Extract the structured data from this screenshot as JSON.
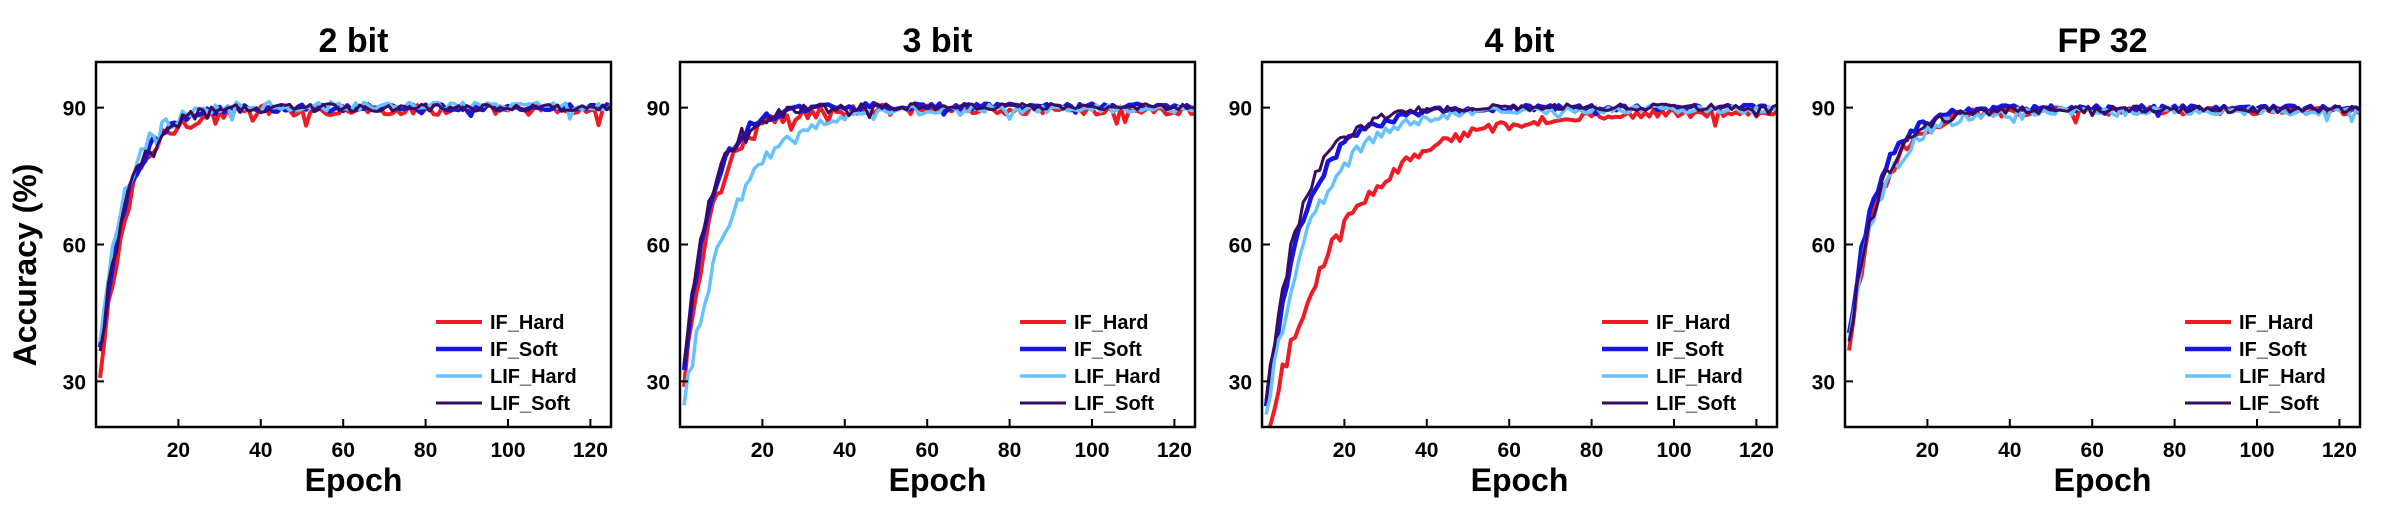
{
  "figure": {
    "ylabel_shared": "Accuracy (%)"
  },
  "colors": {
    "IF_Hard": "#ee1c25",
    "IF_Soft": "#1515e0",
    "LIF_Hard": "#66c2ff",
    "LIF_Soft": "#3b0b5e"
  },
  "chart_data": [
    {
      "type": "line",
      "title": "2 bit",
      "xlabel": "Epoch",
      "ylabel": "Accuracy (%)",
      "xlim": [
        0,
        125
      ],
      "ylim": [
        20,
        100
      ],
      "xticks": [
        20,
        40,
        60,
        80,
        100,
        120
      ],
      "yticks": [
        30,
        60,
        90
      ],
      "legend": "bottom-right",
      "series": [
        {
          "name": "IF_Hard",
          "shape": {
            "start": 30,
            "final": 89.5,
            "k": 0.15,
            "noise": 1.1
          }
        },
        {
          "name": "IF_Soft",
          "shape": {
            "start": 37,
            "final": 90.0,
            "k": 0.15,
            "noise": 0.7
          }
        },
        {
          "name": "LIF_Hard",
          "shape": {
            "start": 38,
            "final": 90.3,
            "k": 0.16,
            "noise": 0.9
          }
        },
        {
          "name": "LIF_Soft",
          "shape": {
            "start": 36,
            "final": 90.0,
            "k": 0.15,
            "noise": 0.8
          }
        }
      ]
    },
    {
      "type": "line",
      "title": "3 bit",
      "xlabel": "Epoch",
      "ylabel": "",
      "xlim": [
        0,
        125
      ],
      "ylim": [
        20,
        100
      ],
      "xticks": [
        20,
        40,
        60,
        80,
        100,
        120
      ],
      "yticks": [
        30,
        60,
        90
      ],
      "legend": "bottom-right",
      "series": [
        {
          "name": "IF_Hard",
          "shape": {
            "start": 28,
            "final": 89.5,
            "k": 0.15,
            "noise": 1.0
          }
        },
        {
          "name": "IF_Soft",
          "shape": {
            "start": 32,
            "final": 90.3,
            "k": 0.16,
            "noise": 0.6
          }
        },
        {
          "name": "LIF_Hard",
          "shape": {
            "start": 24,
            "final": 89.8,
            "k": 0.09,
            "noise": 0.9
          }
        },
        {
          "name": "LIF_Soft",
          "shape": {
            "start": 33,
            "final": 90.2,
            "k": 0.16,
            "noise": 0.7
          }
        }
      ]
    },
    {
      "type": "line",
      "title": "4 bit",
      "xlabel": "Epoch",
      "ylabel": "",
      "xlim": [
        0,
        125
      ],
      "ylim": [
        20,
        100
      ],
      "xticks": [
        20,
        40,
        60,
        80,
        100,
        120
      ],
      "yticks": [
        30,
        60,
        90
      ],
      "legend": "bottom-right",
      "series": [
        {
          "name": "IF_Hard",
          "shape": {
            "start": 18,
            "final": 89.0,
            "k": 0.055,
            "noise": 0.9
          }
        },
        {
          "name": "IF_Soft",
          "shape": {
            "start": 24,
            "final": 90.0,
            "k": 0.11,
            "noise": 0.6
          }
        },
        {
          "name": "LIF_Hard",
          "shape": {
            "start": 22,
            "final": 89.6,
            "k": 0.09,
            "noise": 0.8
          }
        },
        {
          "name": "LIF_Soft",
          "shape": {
            "start": 25,
            "final": 90.1,
            "k": 0.12,
            "noise": 0.7
          }
        }
      ]
    },
    {
      "type": "line",
      "title": "FP 32",
      "xlabel": "Epoch",
      "ylabel": "",
      "xlim": [
        0,
        125
      ],
      "ylim": [
        20,
        100
      ],
      "xticks": [
        20,
        40,
        60,
        80,
        100,
        120
      ],
      "yticks": [
        30,
        60,
        90
      ],
      "legend": "bottom-right",
      "series": [
        {
          "name": "IF_Hard",
          "shape": {
            "start": 36,
            "final": 89.3,
            "k": 0.14,
            "noise": 0.8
          }
        },
        {
          "name": "IF_Soft",
          "shape": {
            "start": 40,
            "final": 89.9,
            "k": 0.15,
            "noise": 0.6
          }
        },
        {
          "name": "LIF_Hard",
          "shape": {
            "start": 38,
            "final": 89.2,
            "k": 0.13,
            "noise": 0.8
          }
        },
        {
          "name": "LIF_Soft",
          "shape": {
            "start": 38,
            "final": 89.6,
            "k": 0.14,
            "noise": 0.7
          }
        }
      ]
    }
  ]
}
